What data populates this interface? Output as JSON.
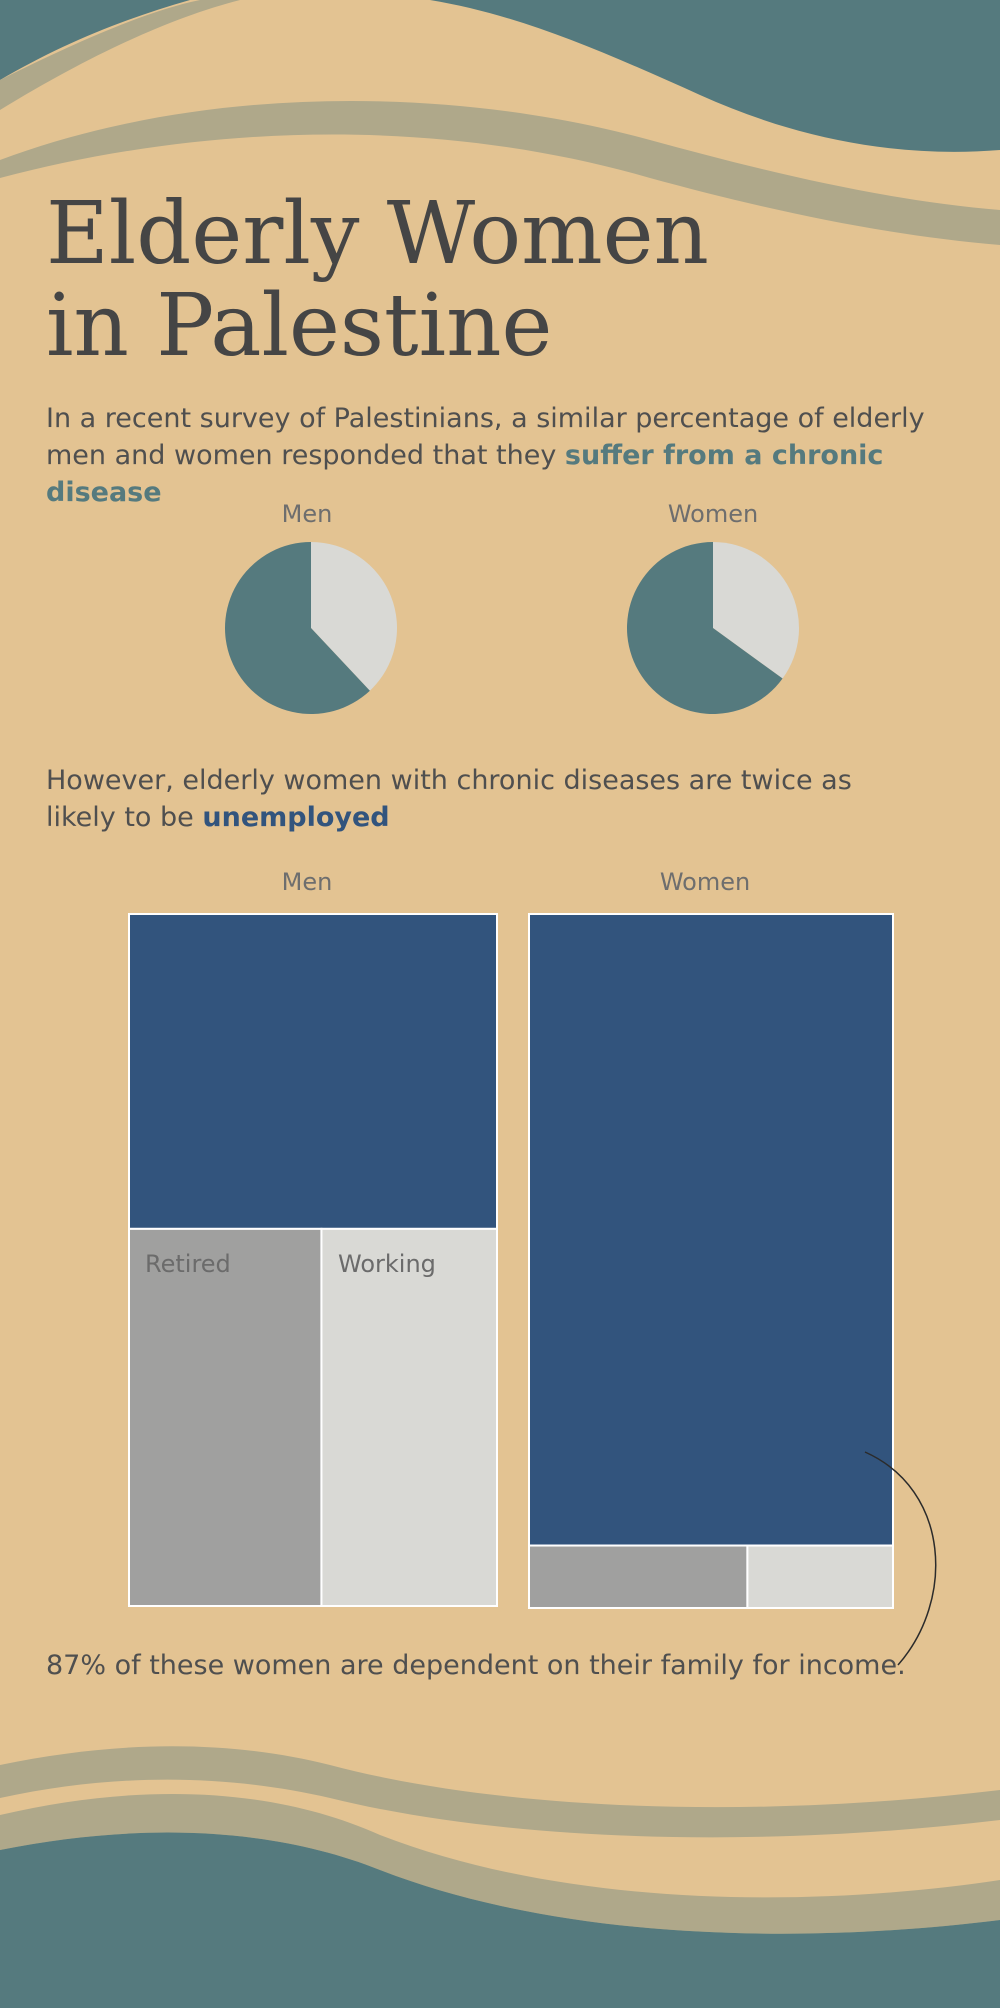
{
  "title": {
    "line1": "Elderly Women",
    "line2": "in Palestine"
  },
  "intro": {
    "text": "In a recent survey of Palestinians, a similar percentage of elderly men and women responded that they ",
    "highlight": "suffer from a chronic disease"
  },
  "employment_intro": {
    "text": "However, elderly women with chronic diseases are twice as likely to be ",
    "highlight": "unemployed"
  },
  "footnote": "87% of these women are dependent on their family for income.",
  "colors": {
    "background": "#E3C392",
    "teal": "#557A7E",
    "wave_band": "#AFA88A",
    "light_gray": "#D9D9D5",
    "mid_gray": "#A0A09F",
    "navy": "#32547D"
  },
  "chart_data": [
    {
      "type": "pie",
      "title": "",
      "pies": [
        {
          "label": "Men",
          "slices": [
            {
              "name": "",
              "value": 62,
              "color": "#557A7E"
            },
            {
              "name": "",
              "value": 38,
              "color": "#D9D9D5"
            }
          ]
        },
        {
          "label": "Women",
          "slices": [
            {
              "name": "",
              "value": 65,
              "color": "#557A7E"
            },
            {
              "name": "",
              "value": 35,
              "color": "#D9D9D5"
            }
          ]
        }
      ]
    },
    {
      "type": "treemap",
      "title": "",
      "groups": [
        {
          "label": "Men",
          "segments": [
            {
              "name": "",
              "value": 45.5,
              "color": "#32547D"
            },
            {
              "name": "Retired",
              "value": 28.5,
              "color": "#A0A09F"
            },
            {
              "name": "Working",
              "value": 26,
              "color": "#D9D9D5"
            }
          ]
        },
        {
          "label": "Women",
          "segments": [
            {
              "name": "",
              "value": 91,
              "color": "#32547D"
            },
            {
              "name": "",
              "value": 5.4,
              "color": "#A0A09F"
            },
            {
              "name": "",
              "value": 3.6,
              "color": "#D9D9D5"
            }
          ]
        }
      ]
    }
  ]
}
